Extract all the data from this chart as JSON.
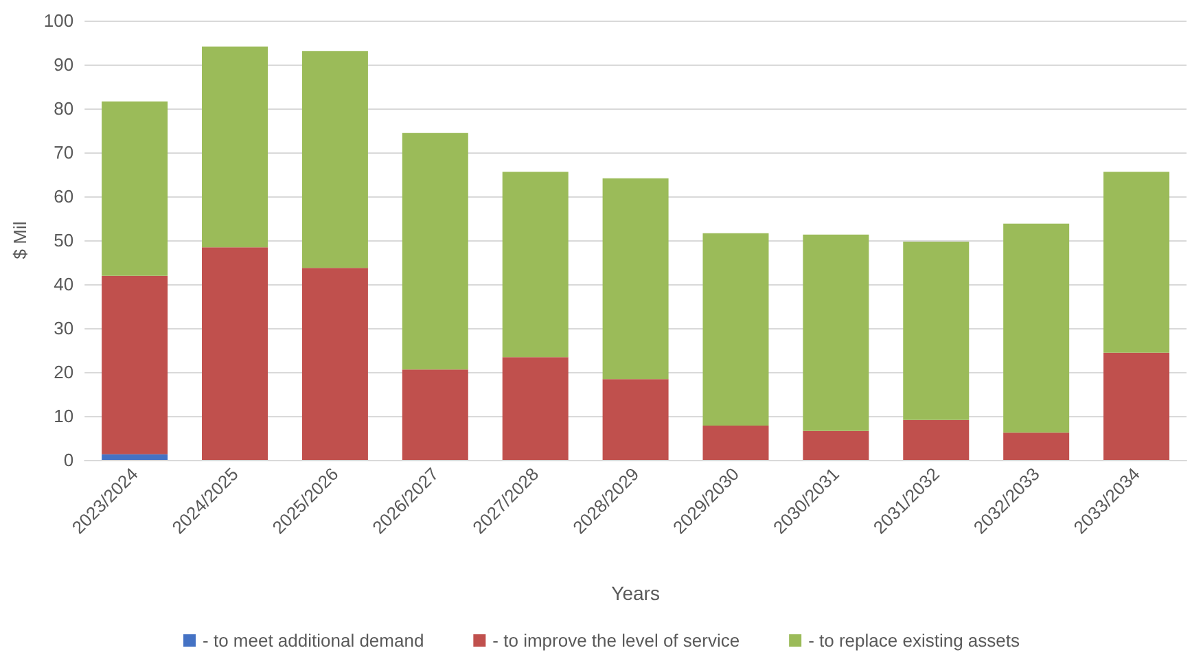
{
  "chart_data": {
    "type": "bar",
    "stacked": true,
    "xlabel": "Years",
    "ylabel": "$ Mil",
    "categories": [
      "2023/2024",
      "2024/2025",
      "2025/2026",
      "2026/2027",
      "2027/2028",
      "2028/2029",
      "2029/2030",
      "2030/2031",
      "2031/2032",
      "2032/2033",
      "2033/2034"
    ],
    "series": [
      {
        "name": "- to meet additional demand",
        "color": "#4472c4",
        "values": [
          1.3,
          0,
          0,
          0,
          0,
          0,
          0,
          0,
          0,
          0,
          0
        ]
      },
      {
        "name": "- to improve the level of service",
        "color": "#c0504d",
        "values": [
          40.6,
          48.4,
          43.7,
          20.6,
          23.4,
          18.4,
          7.8,
          6.6,
          9.1,
          6.2,
          24.4
        ]
      },
      {
        "name": "- to replace existing assets",
        "color": "#9bbb59",
        "values": [
          39.7,
          45.7,
          49.4,
          53.8,
          42.2,
          45.7,
          43.8,
          44.7,
          40.6,
          47.6,
          41.2
        ]
      }
    ],
    "ylim": [
      0,
      100
    ],
    "yticks": [
      0,
      10,
      20,
      30,
      40,
      50,
      60,
      70,
      80,
      90,
      100
    ],
    "grid": "y",
    "legend": "bottom"
  }
}
